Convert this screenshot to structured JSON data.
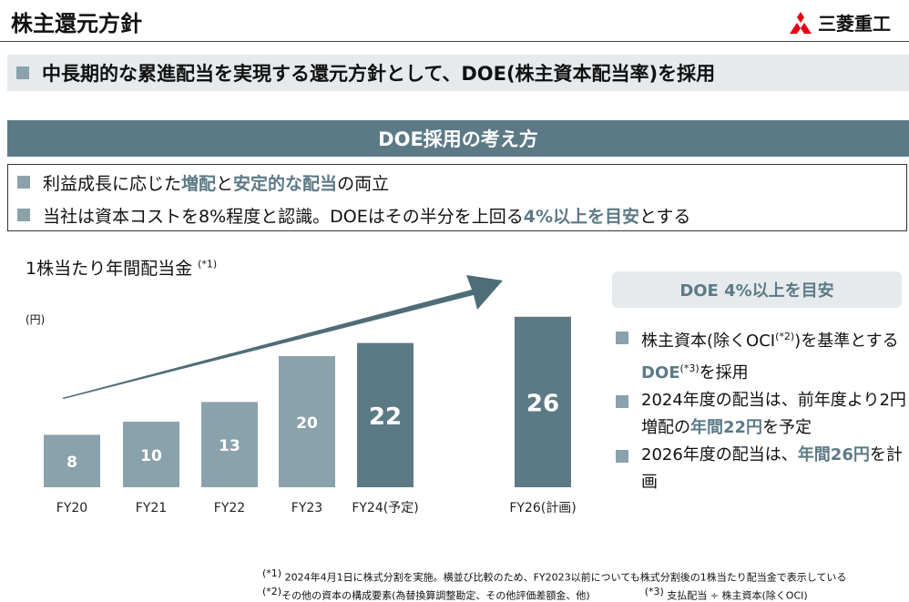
{
  "header": {
    "title": "株主還元方針",
    "logo_text": "三菱重工"
  },
  "subtitle": "中長期的な累進配当を実現する還元方針として、DOE(株主資本配当率)を採用",
  "section_title": "DOE採用の考え方",
  "points": [
    {
      "a": "利益成長に応じた",
      "b": "増配",
      "c": "と",
      "d": "安定的な配当",
      "e": "の両立"
    },
    {
      "a": "当社は資本コストを8%程度と認識。DOEはその半分を上回る",
      "b": "4%以上を目安",
      "c": "とする"
    }
  ],
  "chart_heading": "1株当たり年間配当金",
  "chart_heading_note": "(*1)",
  "chart_data": {
    "type": "bar",
    "unit": "(円)",
    "categories": [
      "FY20",
      "FY21",
      "FY22",
      "FY23",
      "FY24(予定)",
      "FY26(計画)"
    ],
    "values": [
      8,
      10,
      13,
      20,
      22,
      26
    ],
    "colors": [
      "#8aa2ac",
      "#8aa2ac",
      "#8aa2ac",
      "#8aa2ac",
      "#5c7a86",
      "#5c7a86"
    ],
    "ylim": [
      0,
      28
    ]
  },
  "doe_box": "DOE 4%以上を目安",
  "bullets": {
    "b1a": "株主資本(除くOCI",
    "b1n": "(*2)",
    "b1b": ")を基準とする",
    "b1c": "DOE",
    "b1n2": "(*3)",
    "b1d": "を採用",
    "b2a": "2024年度の配当は、前年度より2円増配の",
    "b2b": "年間22円",
    "b2c": "を予定",
    "b3a": "2026年度の配当は、",
    "b3b": "年間26円",
    "b3c": "を計画"
  },
  "notes": {
    "n1m": "(*1)",
    "n1": "2024年4月1日に株式分割を実施。横並び比較のため、FY2023以前についても株式分割後の1株当たり配当金で表示している",
    "n2m": "(*2)",
    "n2": "その他の資本の構成要素(為替換算調整勘定、その他評価差額金、他)",
    "n3m": "(*3)",
    "n3": "支払配当 ÷ 株主資本(除くOCI)"
  },
  "colors": {
    "accent": "#5c7a86",
    "light": "#8aa2ac",
    "logo_red": "#e60012"
  }
}
